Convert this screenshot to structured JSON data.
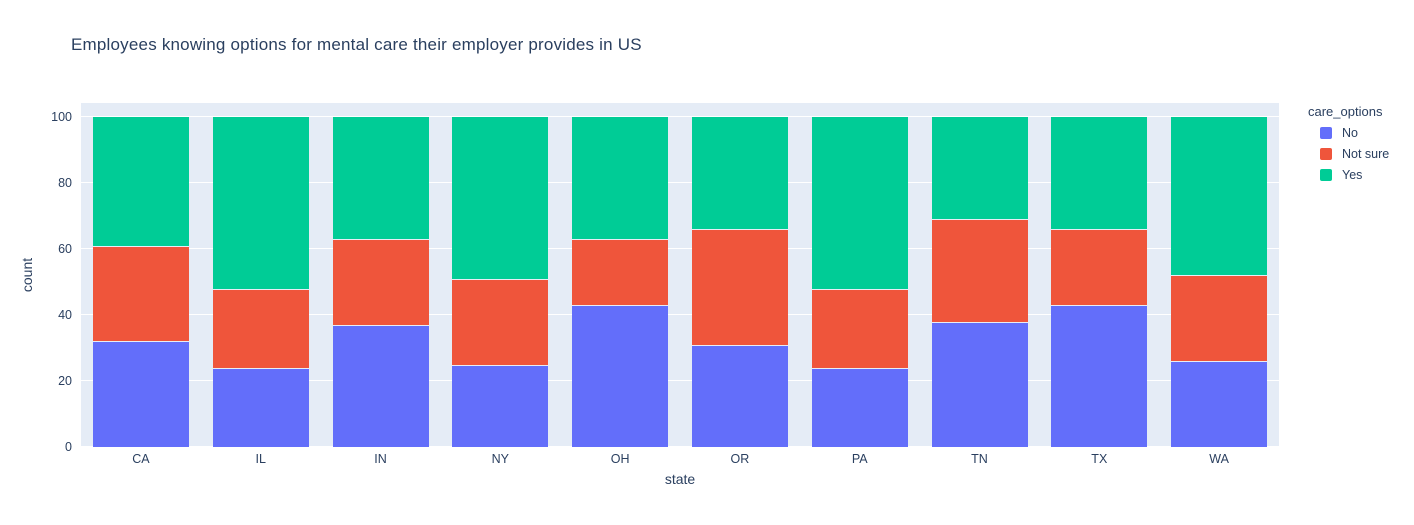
{
  "title": "Employees knowing options for mental care their employer provides in US",
  "chart_data": {
    "type": "bar",
    "mode": "stacked",
    "title": "Employees knowing options for mental care their employer provides in US",
    "xlabel": "state",
    "ylabel": "count",
    "categories": [
      "CA",
      "IL",
      "IN",
      "NY",
      "OH",
      "OR",
      "PA",
      "TN",
      "TX",
      "WA"
    ],
    "series": [
      {
        "name": "No",
        "color": "#636efa",
        "values": [
          32,
          24,
          37,
          25,
          43,
          31,
          24,
          38,
          43,
          26
        ]
      },
      {
        "name": "Not sure",
        "color": "#ef553b",
        "values": [
          29,
          24,
          26,
          26,
          20,
          35,
          24,
          31,
          23,
          26
        ]
      },
      {
        "name": "Yes",
        "color": "#00cc96",
        "values": [
          39,
          52,
          37,
          49,
          37,
          34,
          52,
          31,
          34,
          48
        ]
      }
    ],
    "ylim": [
      0,
      100
    ],
    "yticks": [
      0,
      20,
      40,
      60,
      80,
      100
    ],
    "grid": true,
    "legend_title": "care_options",
    "legend_position": "right"
  },
  "colors": {
    "plot_background": "#e5ecf6",
    "gridline": "#ffffff",
    "text": "#2a3f5f",
    "no": "#636efa",
    "not_sure": "#ef553b",
    "yes": "#00cc96"
  }
}
